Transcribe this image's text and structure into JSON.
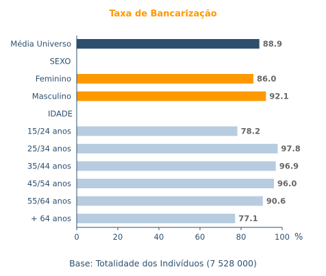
{
  "chart_data": {
    "type": "bar",
    "orientation": "horizontal",
    "title": "Taxa de Bancarização",
    "unit": "%",
    "footnote": "Base: Totalidade dos Indivíduos (7 528 000)",
    "xlim": [
      0,
      100
    ],
    "xticks": [
      "0",
      "20",
      "40",
      "60",
      "80",
      "100"
    ],
    "rows": [
      {
        "label": "Média Universo",
        "value": 88.9,
        "value_label": "88.9",
        "color": "#2d4f6e"
      },
      {
        "label": "SEXO",
        "value": null,
        "value_label": null
      },
      {
        "label": "Feminino",
        "value": 86.0,
        "value_label": "86.0",
        "color": "#ff9900"
      },
      {
        "label": "Masculino",
        "value": 92.1,
        "value_label": "92.1",
        "color": "#ff9900"
      },
      {
        "label": "IDADE",
        "value": null,
        "value_label": null
      },
      {
        "label": "15/24 anos",
        "value": 78.2,
        "value_label": "78.2",
        "color": "#b8cce0"
      },
      {
        "label": "25/34 anos",
        "value": 97.8,
        "value_label": "97.8",
        "color": "#b8cce0"
      },
      {
        "label": "35/44 anos",
        "value": 96.9,
        "value_label": "96.9",
        "color": "#b8cce0"
      },
      {
        "label": "45/54 anos",
        "value": 96.0,
        "value_label": "96.0",
        "color": "#b8cce0"
      },
      {
        "label": "55/64 anos",
        "value": 90.6,
        "value_label": "90.6",
        "color": "#b8cce0"
      },
      {
        "label": "+ 64 anos",
        "value": 77.1,
        "value_label": "77.1",
        "color": "#b8cce0"
      }
    ],
    "colors": {
      "title": "#ff9900",
      "text": "#2d4f6e",
      "axis": "#2d4f6e",
      "value_label": "#666666"
    }
  }
}
